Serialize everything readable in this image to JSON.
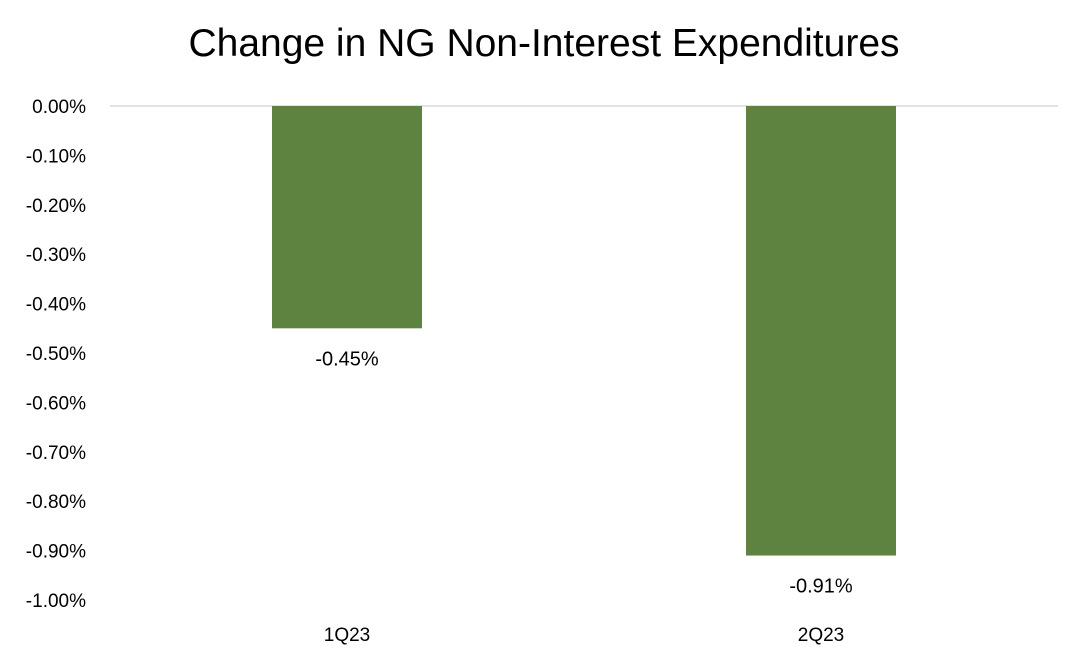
{
  "chart_data": {
    "type": "bar",
    "title": "Change in NG Non-Interest Expenditures",
    "xlabel": "",
    "ylabel": "",
    "categories": [
      "1Q23",
      "2Q23"
    ],
    "values": [
      -0.45,
      -0.91
    ],
    "data_labels": [
      "-0.45%",
      "-0.91%"
    ],
    "ylim": [
      -1.0,
      0.0
    ],
    "yticks": [
      0.0,
      -0.1,
      -0.2,
      -0.3,
      -0.4,
      -0.5,
      -0.6,
      -0.7,
      -0.8,
      -0.9,
      -1.0
    ],
    "ytick_labels": [
      "0.00%",
      "-0.10%",
      "-0.20%",
      "-0.30%",
      "-0.40%",
      "-0.50%",
      "-0.60%",
      "-0.70%",
      "-0.80%",
      "-0.90%",
      "-1.00%"
    ],
    "grid": false,
    "legend": "none",
    "colors": {
      "bar": "#5e8240",
      "zero_line": "#d9d9d9"
    }
  }
}
